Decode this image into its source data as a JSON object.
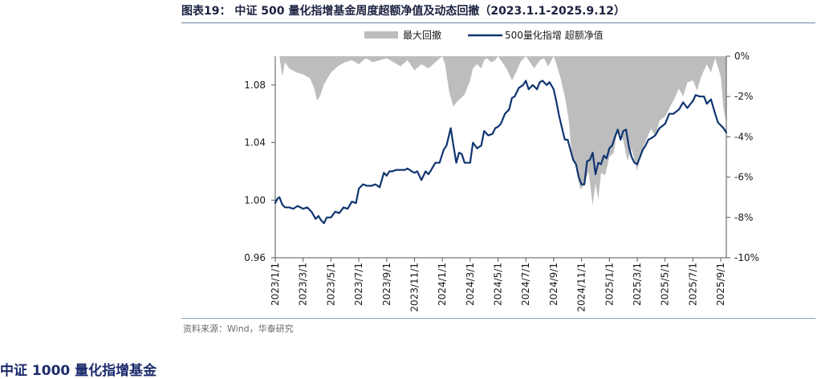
{
  "caption": "图表19：  中证 500 量化指增基金周度超额净值及动态回撤（2023.1.1-2025.9.12）",
  "source": "资料来源：Wind，华泰研究",
  "next_heading": "中证 1000 量化指增基金",
  "colors": {
    "line": "#0f3570",
    "area": "#bdbdbd",
    "axis": "#555555",
    "text": "#1a1a1a"
  },
  "chart_data": {
    "type": "line",
    "title": "中证 500 量化指增基金周度超额净值及动态回撤（2023.1.1-2025.9.12）",
    "legend_position": "top-center",
    "x_range": [
      0,
      32.4
    ],
    "x_unit": "months since 2023-01",
    "categories": [
      "2023/1/1",
      "2023/3/1",
      "2023/5/1",
      "2023/7/1",
      "2023/9/1",
      "2023/11/1",
      "2024/1/1",
      "2024/3/1",
      "2024/5/1",
      "2024/7/1",
      "2024/9/1",
      "2024/11/1",
      "2025/1/1",
      "2025/3/1",
      "2025/5/1",
      "2025/7/1",
      "2025/9/1"
    ],
    "category_positions": [
      0,
      2,
      4,
      6,
      8,
      10,
      12,
      14,
      16,
      18,
      20,
      22,
      24,
      26,
      28,
      30,
      32
    ],
    "y_left": {
      "label": "",
      "min": 0.96,
      "max": 1.1,
      "ticks": [
        0.96,
        1.0,
        1.04,
        1.08
      ],
      "tick_labels": [
        "0.96",
        "1.00",
        "1.04",
        "1.08"
      ]
    },
    "y_right": {
      "label": "",
      "min": -10,
      "max": 0,
      "ticks": [
        0,
        -2,
        -4,
        -6,
        -8,
        -10
      ],
      "tick_labels": [
        "0%",
        "-2%",
        "-4%",
        "-6%",
        "-8%",
        "-10%"
      ]
    },
    "series": [
      {
        "name": "最大回撤",
        "type": "area",
        "axis": "right",
        "x": [
          0,
          0.3,
          0.5,
          0.7,
          1,
          1.5,
          2,
          2.5,
          2.8,
          3,
          3.2,
          3.5,
          4,
          4.5,
          5,
          5.5,
          6,
          6.5,
          7,
          7.5,
          8,
          8.5,
          9,
          9.5,
          10,
          10.5,
          11,
          11.5,
          12,
          12.2,
          12.5,
          12.8,
          13,
          13.3,
          13.6,
          14,
          14.2,
          14.5,
          14.8,
          15,
          15.2,
          15.5,
          15.8,
          16,
          16.3,
          16.6,
          17,
          17.3,
          17.6,
          18,
          18.3,
          18.6,
          19,
          19.3,
          19.6,
          20,
          20.2,
          20.5,
          20.8,
          21,
          21.1,
          21.3,
          21.6,
          21.9,
          22.2,
          22.5,
          22.8,
          23,
          23.2,
          23.4,
          23.7,
          24,
          24.3,
          24.6,
          25,
          25.3,
          25.6,
          26,
          26.2,
          26.5,
          26.8,
          27,
          27.3,
          27.6,
          28,
          28.3,
          28.6,
          29,
          29.3,
          29.6,
          30,
          30.3,
          30.6,
          31,
          31.3,
          31.6,
          32,
          32.2,
          32.4
        ],
        "values": [
          0,
          0,
          -1.0,
          -0.3,
          -0.6,
          -0.8,
          -0.9,
          -1.1,
          -1.6,
          -2.2,
          -2.0,
          -1.4,
          -0.8,
          -0.5,
          -0.3,
          -0.2,
          -0.4,
          -0.1,
          -0.3,
          -0.2,
          -0.1,
          -0.3,
          -0.5,
          -0.2,
          -0.7,
          -0.4,
          -0.6,
          -0.3,
          0,
          -0.4,
          -1.8,
          -2.5,
          -2.3,
          -2.1,
          -1.9,
          -1.2,
          -0.6,
          -0.4,
          -0.6,
          -0.2,
          -0.1,
          -0.3,
          -0.2,
          0,
          -0.3,
          -0.6,
          -1.2,
          -0.8,
          -0.3,
          0,
          -0.3,
          -0.6,
          -0.2,
          -0.1,
          -0.5,
          0,
          -0.4,
          -1.1,
          -2.0,
          -2.8,
          -3.3,
          -5.0,
          -5.5,
          -6.6,
          -6.4,
          -5.7,
          -7.4,
          -6.3,
          -7.1,
          -5.8,
          -5.9,
          -5.0,
          -4.8,
          -3.6,
          -4.2,
          -5.2,
          -4.6,
          -5.7,
          -5.0,
          -4.4,
          -3.9,
          -3.6,
          -4.0,
          -3.2,
          -3.0,
          -2.6,
          -2.2,
          -1.6,
          -2.0,
          -1.3,
          -1.2,
          -1.7,
          -1.0,
          -0.4,
          -0.8,
          -0.1,
          -1.0,
          -2.6,
          -3.3
        ]
      },
      {
        "name": "500量化指增 超额净值",
        "type": "line",
        "axis": "left",
        "x": [
          0,
          0.15,
          0.3,
          0.5,
          0.7,
          1,
          1.3,
          1.6,
          2,
          2.3,
          2.6,
          2.9,
          3.1,
          3.3,
          3.5,
          3.7,
          4,
          4.3,
          4.6,
          4.9,
          5.2,
          5.5,
          5.8,
          6,
          6.3,
          6.6,
          6.9,
          7.2,
          7.5,
          7.8,
          8,
          8.2,
          8.4,
          8.7,
          9,
          9.3,
          9.5,
          9.8,
          10,
          10.2,
          10.5,
          10.8,
          11,
          11.2,
          11.5,
          11.8,
          12,
          12.1,
          12.3,
          12.45,
          12.6,
          12.8,
          13,
          13.2,
          13.4,
          13.6,
          14,
          14.2,
          14.5,
          14.8,
          15,
          15.3,
          15.6,
          15.8,
          16,
          16.2,
          16.5,
          16.8,
          17,
          17.2,
          17.5,
          17.8,
          18,
          18.2,
          18.5,
          18.8,
          19,
          19.2,
          19.5,
          19.7,
          20,
          20.2,
          20.4,
          20.6,
          20.8,
          21,
          21.2,
          21.4,
          21.6,
          21.8,
          22,
          22.2,
          22.4,
          22.6,
          22.8,
          23,
          23.2,
          23.4,
          23.6,
          23.8,
          24,
          24.2,
          24.4,
          24.6,
          24.8,
          25,
          25.2,
          25.4,
          25.6,
          25.8,
          26,
          26.2,
          26.4,
          26.6,
          26.8,
          27,
          27.3,
          27.6,
          28,
          28.3,
          28.6,
          29,
          29.3,
          29.6,
          30,
          30.2,
          30.5,
          30.8,
          31,
          31.3,
          31.6,
          31.8,
          32,
          32.2,
          32.4
        ],
        "values": [
          0.998,
          1.001,
          1.002,
          0.997,
          0.995,
          0.995,
          0.994,
          0.996,
          0.994,
          0.995,
          0.992,
          0.987,
          0.989,
          0.986,
          0.984,
          0.988,
          0.988,
          0.992,
          0.991,
          0.995,
          0.994,
          0.999,
          0.998,
          1.008,
          1.011,
          1.01,
          1.01,
          1.011,
          1.009,
          1.019,
          1.017,
          1.02,
          1.02,
          1.021,
          1.021,
          1.021,
          1.022,
          1.02,
          1.019,
          1.02,
          1.014,
          1.02,
          1.018,
          1.021,
          1.026,
          1.026,
          1.032,
          1.035,
          1.038,
          1.044,
          1.05,
          1.038,
          1.026,
          1.033,
          1.032,
          1.026,
          1.026,
          1.04,
          1.036,
          1.038,
          1.048,
          1.045,
          1.046,
          1.05,
          1.051,
          1.053,
          1.06,
          1.063,
          1.071,
          1.072,
          1.078,
          1.08,
          1.083,
          1.077,
          1.08,
          1.077,
          1.082,
          1.083,
          1.08,
          1.082,
          1.077,
          1.068,
          1.058,
          1.05,
          1.042,
          1.042,
          1.035,
          1.028,
          1.025,
          1.016,
          1.011,
          1.011,
          1.027,
          1.028,
          1.033,
          1.018,
          1.026,
          1.025,
          1.031,
          1.029,
          1.036,
          1.038,
          1.044,
          1.049,
          1.042,
          1.048,
          1.049,
          1.037,
          1.03,
          1.026,
          1.025,
          1.03,
          1.035,
          1.038,
          1.042,
          1.043,
          1.045,
          1.05,
          1.053,
          1.06,
          1.06,
          1.063,
          1.068,
          1.064,
          1.069,
          1.073,
          1.072,
          1.072,
          1.067,
          1.07,
          1.06,
          1.054,
          1.052,
          1.05,
          1.047
        ]
      }
    ]
  }
}
